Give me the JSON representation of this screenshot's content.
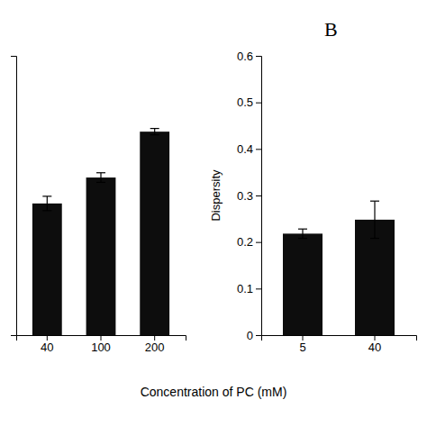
{
  "chart_data": [
    {
      "type": "bar",
      "categories": [
        "40",
        "100",
        "200"
      ],
      "values": [
        330,
        395,
        510
      ],
      "errors": [
        18,
        12,
        8
      ],
      "ylim": [
        0,
        700
      ],
      "tick_labels": "x",
      "color": "#0d0d0d",
      "xlabel": "Concentration of PC (mM)"
    },
    {
      "type": "bar",
      "title": "B",
      "categories": [
        "5",
        "40"
      ],
      "values": [
        0.218,
        0.248
      ],
      "errors": [
        0.01,
        0.04
      ],
      "ylim": [
        0,
        0.6
      ],
      "yticks": [
        0,
        0.1,
        0.2,
        0.3,
        0.4,
        0.5,
        0.6
      ],
      "ylabel": "Dispersity",
      "color": "#0d0d0d"
    }
  ]
}
